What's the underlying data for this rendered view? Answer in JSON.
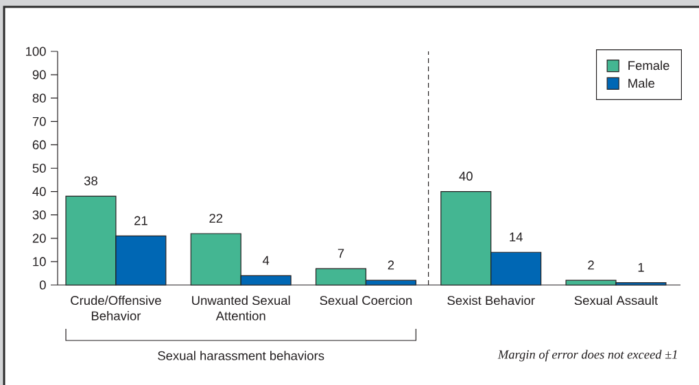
{
  "chart_data": {
    "type": "bar",
    "categories": [
      "Crude/Offensive Behavior",
      "Unwanted Sexual Attention",
      "Sexual Coercion",
      "Sexist Behavior",
      "Sexual Assault"
    ],
    "series": [
      {
        "name": "Female",
        "color": "#44B692",
        "values": [
          38,
          22,
          7,
          40,
          2
        ]
      },
      {
        "name": "Male",
        "color": "#0067B4",
        "values": [
          21,
          4,
          2,
          14,
          1
        ]
      }
    ],
    "ylim": [
      0,
      100
    ],
    "yticks": [
      0,
      10,
      20,
      30,
      40,
      50,
      60,
      70,
      80,
      90,
      100
    ],
    "data_labels": true,
    "legend": "top right",
    "annotations": [
      "Sexual harassment behaviors",
      "Margin of error does not exceed ±1"
    ]
  }
}
